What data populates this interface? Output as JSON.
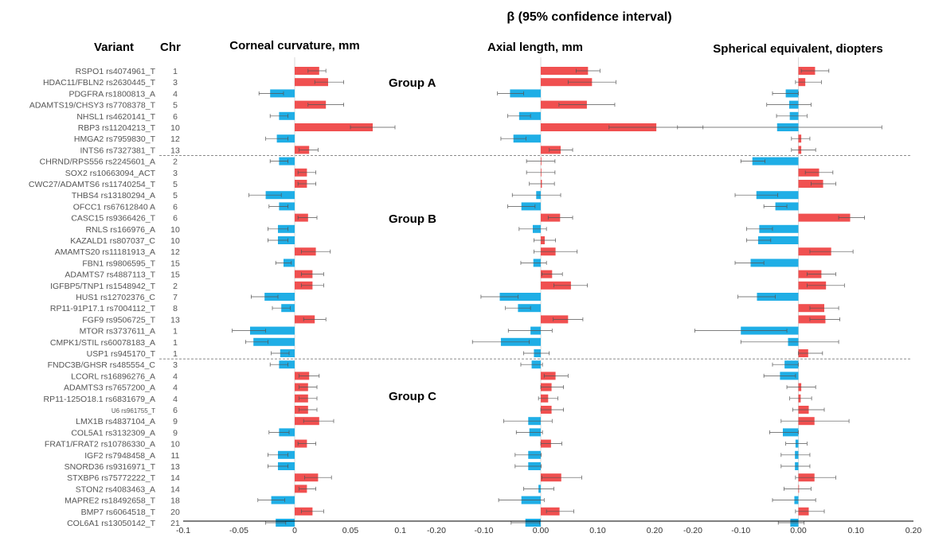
{
  "figure": {
    "title": "β (95% confidence interval)",
    "variant_header": "Variant",
    "chr_header": "Chr",
    "groups": [
      {
        "label": "Group A",
        "start": 0
      },
      {
        "label": "Group B",
        "start": 8
      },
      {
        "label": "Group C",
        "start": 26
      }
    ]
  },
  "colors": {
    "positive": "#F05050",
    "negative": "#1FAEE6",
    "error": "#555555",
    "separator": "#666666"
  },
  "chart_data": [
    {
      "type": "bar",
      "title": "Corneal curvature, mm",
      "xlim": [
        -0.1,
        0.1
      ],
      "ticks": [
        -0.1,
        -0.05,
        0,
        0.05,
        0.1
      ],
      "tick_labels": [
        "-0.1",
        "-0.05",
        "0",
        "0.05",
        "0.1"
      ],
      "beta": [
        0.022,
        0.03,
        -0.022,
        0.028,
        -0.014,
        0.07,
        -0.016,
        0.013,
        -0.014,
        0.011,
        0.011,
        -0.026,
        -0.014,
        0.012,
        -0.015,
        -0.015,
        0.019,
        -0.01,
        0.016,
        0.016,
        -0.027,
        -0.012,
        0.018,
        -0.04,
        -0.037,
        -0.013,
        -0.014,
        0.013,
        0.012,
        0.012,
        0.012,
        0.022,
        -0.014,
        0.011,
        -0.015,
        -0.015,
        0.021,
        0.011,
        -0.021,
        0.016,
        -0.017
      ],
      "ci": [
        [
          0.012,
          0.028
        ],
        [
          0.018,
          0.044
        ],
        [
          -0.032,
          -0.01
        ],
        [
          0.012,
          0.044
        ],
        [
          -0.022,
          -0.006
        ],
        [
          0.05,
          0.09
        ],
        [
          -0.026,
          -0.006
        ],
        [
          0.004,
          0.021
        ],
        [
          -0.022,
          -0.006
        ],
        [
          0.003,
          0.019
        ],
        [
          0.003,
          0.019
        ],
        [
          -0.041,
          -0.012
        ],
        [
          -0.023,
          -0.006
        ],
        [
          0.003,
          0.02
        ],
        [
          -0.024,
          -0.006
        ],
        [
          -0.024,
          -0.006
        ],
        [
          0.006,
          0.032
        ],
        [
          -0.017,
          -0.003
        ],
        [
          0.006,
          0.026
        ],
        [
          0.006,
          0.026
        ],
        [
          -0.039,
          -0.015
        ],
        [
          -0.02,
          -0.004
        ],
        [
          0.008,
          0.028
        ],
        [
          -0.056,
          -0.026
        ],
        [
          -0.044,
          -0.024
        ],
        [
          -0.021,
          -0.005
        ],
        [
          -0.022,
          -0.006
        ],
        [
          0.004,
          0.022
        ],
        [
          0.004,
          0.02
        ],
        [
          0.004,
          0.02
        ],
        [
          0.004,
          0.02
        ],
        [
          0.008,
          0.035
        ],
        [
          -0.023,
          -0.005
        ],
        [
          0.003,
          0.019
        ],
        [
          -0.024,
          -0.006
        ],
        [
          -0.024,
          -0.006
        ],
        [
          0.009,
          0.033
        ],
        [
          0.004,
          0.019
        ],
        [
          -0.033,
          -0.009
        ],
        [
          0.006,
          0.026
        ],
        [
          -0.026,
          -0.008
        ]
      ]
    },
    {
      "type": "bar",
      "title": "Axial length, mm",
      "xlim": [
        -0.2,
        0.2
      ],
      "ticks": [
        -0.2,
        -0.1,
        0,
        0.1,
        0.2
      ],
      "tick_labels": [
        "-0.20",
        "-0.10",
        "0.00",
        "0.10",
        "0.20"
      ],
      "beta": [
        0.083,
        0.09,
        -0.054,
        0.081,
        -0.038,
        0.203,
        -0.048,
        0.035,
        -0.0,
        -0.0,
        0.002,
        -0.008,
        -0.034,
        0.034,
        -0.014,
        0.007,
        0.026,
        -0.013,
        0.02,
        0.053,
        -0.072,
        -0.04,
        0.048,
        -0.018,
        -0.07,
        -0.012,
        -0.016,
        0.026,
        0.019,
        0.013,
        0.019,
        -0.022,
        -0.02,
        0.018,
        -0.022,
        -0.022,
        0.036,
        -0.004,
        -0.034,
        0.033,
        -0.027
      ],
      "ci": [
        [
          0.062,
          0.104
        ],
        [
          0.048,
          0.132
        ],
        [
          -0.076,
          -0.03
        ],
        [
          0.032,
          0.13
        ],
        [
          -0.058,
          -0.018
        ],
        [
          0.12,
          0.285
        ],
        [
          -0.07,
          -0.026
        ],
        [
          0.015,
          0.056
        ],
        [
          -0.025,
          0.025
        ],
        [
          -0.025,
          0.025
        ],
        [
          -0.02,
          0.024
        ],
        [
          -0.05,
          0.035
        ],
        [
          -0.058,
          -0.01
        ],
        [
          0.013,
          0.056
        ],
        [
          -0.038,
          0.01
        ],
        [
          -0.012,
          0.026
        ],
        [
          -0.012,
          0.064
        ],
        [
          -0.035,
          0.01
        ],
        [
          0.002,
          0.038
        ],
        [
          0.023,
          0.082
        ],
        [
          -0.105,
          -0.04
        ],
        [
          -0.062,
          -0.018
        ],
        [
          0.022,
          0.074
        ],
        [
          -0.057,
          0.02
        ],
        [
          -0.12,
          -0.02
        ],
        [
          -0.03,
          0.015
        ],
        [
          -0.035,
          0.003
        ],
        [
          0.006,
          0.048
        ],
        [
          0.0,
          0.04
        ],
        [
          -0.004,
          0.03
        ],
        [
          0.0,
          0.04
        ],
        [
          -0.065,
          0.02
        ],
        [
          -0.043,
          0.003
        ],
        [
          0.0,
          0.037
        ],
        [
          -0.045,
          0.001
        ],
        [
          -0.045,
          0.001
        ],
        [
          0.002,
          0.072
        ],
        [
          -0.03,
          0.023
        ],
        [
          -0.074,
          0.006
        ],
        [
          0.01,
          0.058
        ],
        [
          -0.052,
          -0.002
        ]
      ]
    },
    {
      "type": "bar",
      "title": "Spherical equivalent, diopters",
      "xlim": [
        -0.2,
        0.2
      ],
      "ticks": [
        -0.2,
        -0.1,
        0,
        0.1,
        0.2
      ],
      "tick_labels": [
        "-0.20",
        "-0.10",
        "0.00",
        "0.10",
        "0.20"
      ],
      "beta": [
        0.029,
        0.012,
        -0.022,
        -0.016,
        -0.015,
        -0.037,
        0.005,
        0.005,
        -0.08,
        0.036,
        0.043,
        -0.073,
        -0.04,
        0.09,
        -0.068,
        -0.07,
        0.057,
        -0.083,
        0.04,
        0.048,
        -0.072,
        0.045,
        0.047,
        -0.1,
        -0.018,
        0.017,
        -0.024,
        -0.032,
        0.005,
        0.004,
        0.018,
        0.028,
        -0.027,
        -0.005,
        -0.006,
        -0.006,
        0.028,
        0.001,
        -0.007,
        0.018,
        -0.014
      ],
      "ci": [
        [
          0.005,
          0.053
        ],
        [
          -0.005,
          0.04
        ],
        [
          -0.045,
          0.0
        ],
        [
          -0.055,
          0.022
        ],
        [
          -0.038,
          0.015
        ],
        [
          -0.21,
          0.145
        ],
        [
          -0.012,
          0.02
        ],
        [
          -0.012,
          0.03
        ],
        [
          -0.1,
          -0.058
        ],
        [
          0.012,
          0.06
        ],
        [
          0.022,
          0.065
        ],
        [
          -0.11,
          -0.036
        ],
        [
          -0.06,
          -0.02
        ],
        [
          0.07,
          0.115
        ],
        [
          -0.09,
          -0.045
        ],
        [
          -0.09,
          -0.048
        ],
        [
          0.02,
          0.095
        ],
        [
          -0.11,
          -0.06
        ],
        [
          0.015,
          0.065
        ],
        [
          0.015,
          0.08
        ],
        [
          -0.105,
          -0.04
        ],
        [
          0.02,
          0.07
        ],
        [
          0.02,
          0.072
        ],
        [
          -0.18,
          -0.02
        ],
        [
          -0.1,
          0.07
        ],
        [
          0.0,
          0.042
        ],
        [
          -0.045,
          0.0
        ],
        [
          -0.06,
          -0.005
        ],
        [
          -0.02,
          0.03
        ],
        [
          -0.015,
          0.023
        ],
        [
          -0.01,
          0.045
        ],
        [
          -0.03,
          0.088
        ],
        [
          -0.05,
          0.0
        ],
        [
          -0.022,
          0.015
        ],
        [
          -0.03,
          0.02
        ],
        [
          -0.03,
          0.02
        ],
        [
          -0.005,
          0.065
        ],
        [
          -0.025,
          0.022
        ],
        [
          -0.045,
          0.03
        ],
        [
          -0.005,
          0.045
        ],
        [
          -0.035,
          0.01
        ]
      ]
    }
  ],
  "rows": [
    {
      "variant": "RSPO1 rs4074961_T",
      "chr": "1"
    },
    {
      "variant": "HDAC11/FBLN2 rs2630445_T",
      "chr": "3"
    },
    {
      "variant": "PDGFRA rs1800813_A",
      "chr": "4"
    },
    {
      "variant": "ADAMTS19/CHSY3 rs7708378_T",
      "chr": "5"
    },
    {
      "variant": "NHSL1 rs4620141_T",
      "chr": "6"
    },
    {
      "variant": "RBP3 rs11204213_T",
      "chr": "10"
    },
    {
      "variant": "HMGA2 rs7959830_T",
      "chr": "12"
    },
    {
      "variant": "INTS6 rs7327381_T",
      "chr": "13"
    },
    {
      "variant": "CHRND/RPS556 rs2245601_A",
      "chr": "2"
    },
    {
      "variant": "SOX2 rs10663094_ACT",
      "chr": "3"
    },
    {
      "variant": "CWC27/ADAMTS6 rs11740254_T",
      "chr": "5"
    },
    {
      "variant": "THBS4 rs13180294_A",
      "chr": "5"
    },
    {
      "variant": "OFCC1 rs67612840 A",
      "chr": "6"
    },
    {
      "variant": "CASC15 rs9366426_T",
      "chr": "6"
    },
    {
      "variant": "RNLS rs166976_A",
      "chr": "10"
    },
    {
      "variant": "KAZALD1 rs807037_C",
      "chr": "10"
    },
    {
      "variant": "AMAMTS20 rs11181913_A",
      "chr": "12"
    },
    {
      "variant": "FBN1 rs9806595_T",
      "chr": "15"
    },
    {
      "variant": "ADAMTS7 rs4887113_T",
      "chr": "15"
    },
    {
      "variant": "IGFBP5/TNP1 rs1548942_T",
      "chr": "2"
    },
    {
      "variant": "HUS1 rs12702376_C",
      "chr": "7"
    },
    {
      "variant": "RP11-91P17.1 rs7004112_T",
      "chr": "8"
    },
    {
      "variant": "FGF9 rs9506725_T",
      "chr": "13"
    },
    {
      "variant": "MTOR rs3737611_A",
      "chr": "1"
    },
    {
      "variant": "CMPK1/STIL rs60078183_A",
      "chr": "1"
    },
    {
      "variant": "USP1 rs945170_T",
      "chr": "1"
    },
    {
      "variant": "FNDC3B/GHSR rs485554_C",
      "chr": "3"
    },
    {
      "variant": "LCORL rs16896276_A",
      "chr": "4"
    },
    {
      "variant": "ADAMTS3 rs7657200_A",
      "chr": "4"
    },
    {
      "variant": "RP11-125O18.1 rs6831679_A",
      "chr": "4"
    },
    {
      "variant": "U6 rs961755_T",
      "chr": "6",
      "small": true
    },
    {
      "variant": "LMX1B rs4837104_A",
      "chr": "9"
    },
    {
      "variant": "COL5A1 rs3132309_A",
      "chr": "9"
    },
    {
      "variant": "FRAT1/FRAT2 rs10786330_A",
      "chr": "10"
    },
    {
      "variant": "IGF2 rs7948458_A",
      "chr": "11"
    },
    {
      "variant": "SNORD36 rs9316971_T",
      "chr": "13"
    },
    {
      "variant": "STXBP6 rs75772222_T",
      "chr": "14"
    },
    {
      "variant": "STON2 rs4083463_A",
      "chr": "14"
    },
    {
      "variant": "MAPRE2 rs18492658_T",
      "chr": "18"
    },
    {
      "variant": "BMP7 rs6064518_T",
      "chr": "20"
    },
    {
      "variant": "COL6A1 rs13050142_T",
      "chr": "21"
    }
  ]
}
